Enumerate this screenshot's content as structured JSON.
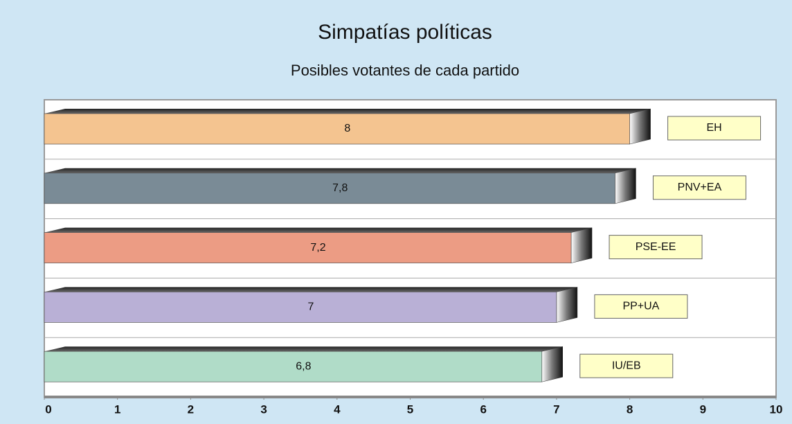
{
  "chart_data": {
    "type": "bar",
    "orientation": "horizontal",
    "title": "Simpatías políticas",
    "subtitle": "Posibles votantes de cada partido",
    "categories": [
      "EH",
      "PNV+EA",
      "PSE-EE",
      "PP+UA",
      "IU/EB"
    ],
    "values": [
      8,
      7.8,
      7.2,
      7,
      6.8
    ],
    "value_labels": [
      "8",
      "7,8",
      "7,2",
      "7",
      "6,8"
    ],
    "colors": [
      "#f4c490",
      "#7a8b96",
      "#ec9c84",
      "#b9b0d6",
      "#b0dcc8"
    ],
    "xlim": [
      0,
      10
    ],
    "xticks": [
      0,
      1,
      2,
      3,
      4,
      5,
      6,
      7,
      8,
      9,
      10
    ]
  }
}
